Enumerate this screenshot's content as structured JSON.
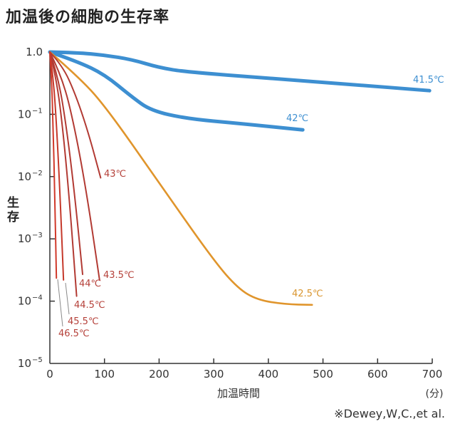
{
  "chart_data": {
    "type": "line",
    "title": "加温後の細胞の生存率",
    "xlabel": "加温時間",
    "xunit": "(分)",
    "ylabel": "生存",
    "yscale": "log",
    "xlim": [
      0,
      700
    ],
    "ylim_log10": [
      -5,
      0
    ],
    "x_ticks": [
      "0",
      "100",
      "200",
      "300",
      "400",
      "500",
      "600",
      "700"
    ],
    "y_ticks": [
      {
        "base": "1.0",
        "exp": ""
      },
      {
        "base": "10",
        "exp": "−1"
      },
      {
        "base": "10",
        "exp": "−2"
      },
      {
        "base": "10",
        "exp": "−3"
      },
      {
        "base": "10",
        "exp": "−4"
      },
      {
        "base": "10",
        "exp": "−5"
      }
    ],
    "source_note": "※Dewey,W,C.,et al.",
    "series": [
      {
        "name": "41.5℃",
        "color": "#3d8fd1",
        "width": "thick",
        "x": [
          0,
          50,
          100,
          150,
          200,
          250,
          400,
          550,
          695
        ],
        "log10_y": [
          0,
          -0.01,
          -0.05,
          -0.12,
          -0.25,
          -0.32,
          -0.42,
          -0.52,
          -0.62
        ]
      },
      {
        "name": "42℃",
        "color": "#3d8fd1",
        "width": "thick",
        "x": [
          0,
          50,
          100,
          150,
          185,
          250,
          350,
          463
        ],
        "log10_y": [
          0,
          -0.15,
          -0.36,
          -0.72,
          -0.94,
          -1.07,
          -1.15,
          -1.25
        ]
      },
      {
        "name": "42.5℃",
        "color": "#e0952c",
        "width": "medium",
        "x": [
          0,
          50,
          100,
          200,
          300,
          345,
          380,
          430,
          480
        ],
        "log10_y": [
          0,
          -0.38,
          -0.85,
          -2.1,
          -3.35,
          -3.8,
          -3.98,
          -4.05,
          -4.06
        ]
      },
      {
        "name": "43℃",
        "color": "#b23a33",
        "width": "thin",
        "x": [
          0,
          23.25,
          46.5,
          69.75,
          93
        ],
        "log10_y": [
          0,
          -0.22,
          -0.67,
          -1.27,
          -2.02
        ]
      },
      {
        "name": "43.5℃",
        "color": "#b23a33",
        "width": "thin",
        "x": [
          0,
          22.75,
          45.5,
          68.25,
          91
        ],
        "log10_y": [
          0,
          -0.4,
          -1.21,
          -2.31,
          -3.66
        ]
      },
      {
        "name": "44℃",
        "color": "#b23a33",
        "width": "thin",
        "x": [
          0,
          15,
          30,
          45,
          60
        ],
        "log10_y": [
          0,
          -0.39,
          -1.18,
          -2.25,
          -3.57
        ]
      },
      {
        "name": "44.5℃",
        "color": "#b23a33",
        "width": "thin",
        "x": [
          0,
          12.25,
          24.5,
          36.75,
          49
        ],
        "log10_y": [
          0,
          -0.43,
          -1.29,
          -2.47,
          -3.92
        ]
      },
      {
        "name": "45.5℃",
        "color": "#c5382a",
        "width": "thin",
        "x": [
          0,
          6.25,
          12.5,
          18.75,
          25
        ],
        "log10_y": [
          0,
          -0.4,
          -1.21,
          -2.31,
          -3.66
        ]
      },
      {
        "name": "46.5℃",
        "color": "#d0392a",
        "width": "thin",
        "x": [
          0,
          3,
          6,
          9,
          12
        ],
        "log10_y": [
          0,
          -0.4,
          -1.2,
          -2.29,
          -3.63
        ]
      }
    ]
  }
}
